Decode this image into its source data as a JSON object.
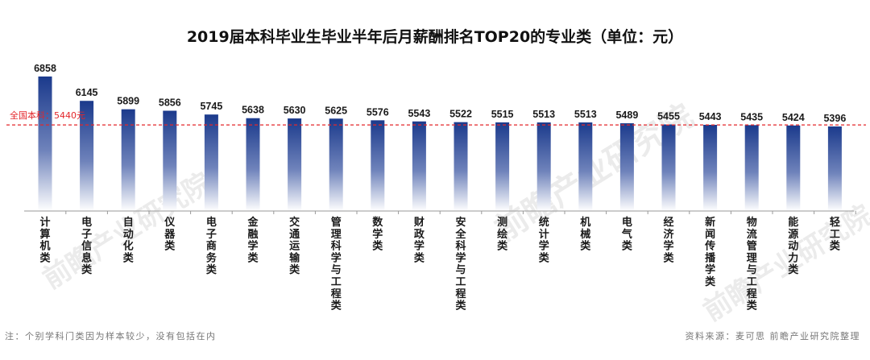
{
  "chart_data": {
    "type": "bar",
    "title": "2019届本科毕业生毕业半年后月薪酬排名TOP20的专业类（单位：元）",
    "categories": [
      "计算机类",
      "电子信息类",
      "自动化类",
      "仪器类",
      "电子商务类",
      "金融学类",
      "交通运输类",
      "管理科学与工程类",
      "数学类",
      "财政学类",
      "安全科学与工程类",
      "测绘类",
      "统计学类",
      "机械类",
      "电气类",
      "经济学类",
      "新闻传播学类",
      "物流管理与工程类",
      "能源动力类",
      "轻工类"
    ],
    "values": [
      6858,
      6145,
      5899,
      5856,
      5745,
      5638,
      5630,
      5625,
      5576,
      5543,
      5522,
      5515,
      5513,
      5513,
      5489,
      5455,
      5443,
      5435,
      5424,
      5396
    ],
    "reference_line": {
      "label": "全国本科：5440元",
      "value": 5440
    },
    "xlabel": "",
    "ylabel": "",
    "legend": "none",
    "grid": false
  },
  "colors": {
    "bar_top": "#1b3a8c",
    "bar_bottom": "#ffffff",
    "reference": "#e3262a"
  },
  "footer": {
    "note": "注：个别学科门类因为样本较少，没有包括在内",
    "source": "资料来源：麦可思  前瞻产业研究院整理"
  },
  "watermark": {
    "text": "前瞻产业研究院"
  }
}
